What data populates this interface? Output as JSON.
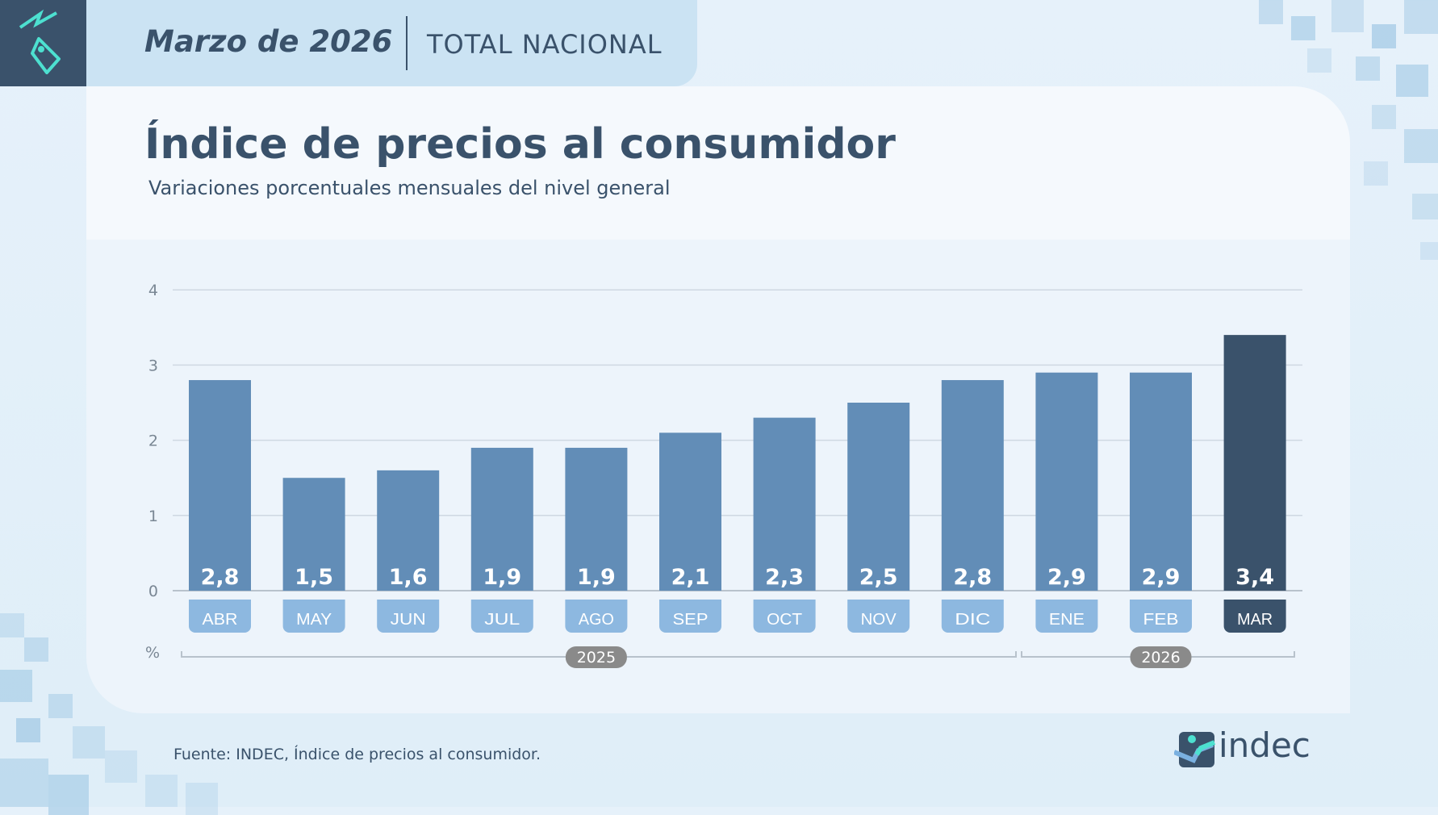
{
  "header": {
    "period": "Marzo de 2026",
    "region": "TOTAL NACIONAL"
  },
  "title": "Índice de precios al consumidor",
  "subtitle": "Variaciones porcentuales mensuales del nivel general",
  "source": "Fuente: INDEC, Índice de precios al consumidor.",
  "logo": {
    "text": "indec"
  },
  "colors": {
    "bar": "#628db7",
    "highlight": "#3a526b",
    "pill": "#8db8e0",
    "year_pill": "#8a8a8a"
  },
  "chart_data": {
    "type": "bar",
    "categories": [
      "ABR",
      "MAY",
      "JUN",
      "JUL",
      "AGO",
      "SEP",
      "OCT",
      "NOV",
      "DIC",
      "ENE",
      "FEB",
      "MAR"
    ],
    "values": [
      2.8,
      1.5,
      1.6,
      1.9,
      1.9,
      2.1,
      2.3,
      2.5,
      2.8,
      2.9,
      2.9,
      3.4
    ],
    "data_labels": [
      "2,8",
      "1,5",
      "1,6",
      "1,9",
      "1,9",
      "2,1",
      "2,3",
      "2,5",
      "2,8",
      "2,9",
      "2,9",
      "3,4"
    ],
    "highlight": "MAR",
    "ylabel": "%",
    "ylim": [
      0,
      4
    ],
    "yticks": [
      "0",
      "1",
      "2",
      "3",
      "4"
    ],
    "grid": true,
    "year_groups": [
      {
        "label": "2025",
        "months": 9
      },
      {
        "label": "2026",
        "months": 3
      }
    ]
  }
}
